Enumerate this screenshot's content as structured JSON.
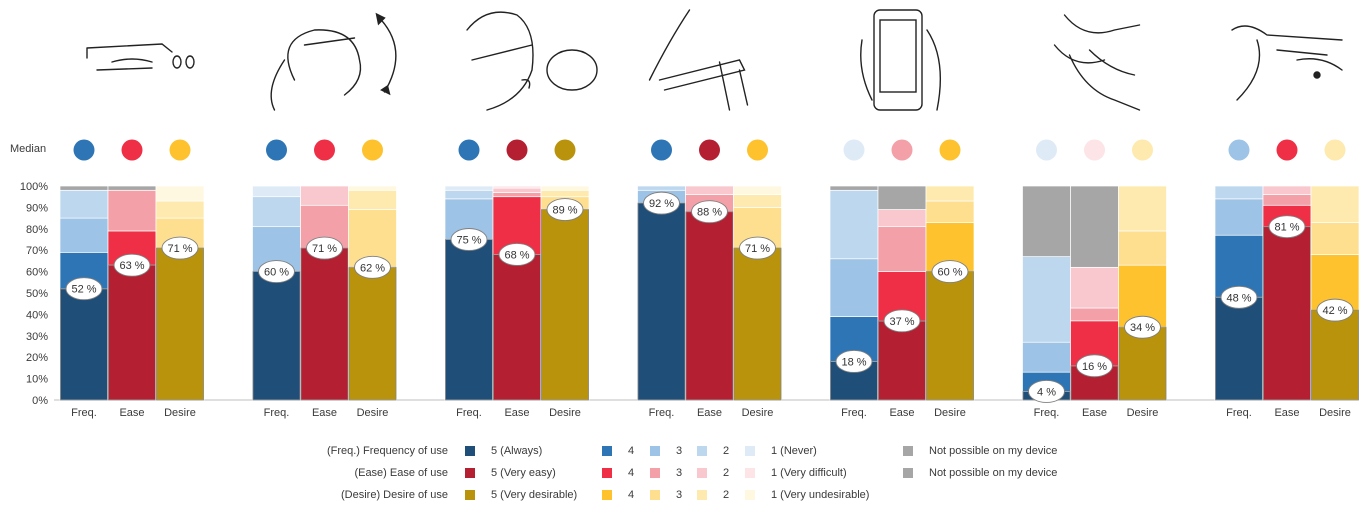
{
  "chart_data": {
    "type": "bar",
    "stacked": true,
    "median_label": "Median",
    "yticks": [
      "0%",
      "10%",
      "20%",
      "30%",
      "40%",
      "50%",
      "60%",
      "70%",
      "80%",
      "90%",
      "100%"
    ],
    "ylim": [
      0,
      100
    ],
    "group_categories": [
      "Freq.",
      "Ease",
      "Desire"
    ],
    "response_levels": [
      "5",
      "4",
      "3",
      "2",
      "1",
      "Not possible on my device"
    ],
    "colors": {
      "freq": [
        "#1f4e79",
        "#2e75b6",
        "#9dc3e6",
        "#bdd7ee",
        "#deebf7",
        "#a6a6a6"
      ],
      "ease": [
        "#b41f32",
        "#ee2f45",
        "#f4a0a9",
        "#f8c8ce",
        "#fce4e7",
        "#a6a6a6"
      ],
      "desire": [
        "#b8930b",
        "#fdc22d",
        "#fedf8f",
        "#feeaae",
        "#fff8e1",
        "#a6a6a6"
      ]
    },
    "groups": [
      {
        "bars": [
          {
            "category": "Freq.",
            "values": [
              52,
              17,
              16,
              13,
              0,
              2
            ],
            "top_label": "52 %",
            "median_level": "4"
          },
          {
            "category": "Ease",
            "values": [
              63,
              16,
              19,
              0,
              0,
              2
            ],
            "top_label": "63 %",
            "median_level": "4"
          },
          {
            "category": "Desire",
            "values": [
              71,
              0,
              14,
              8,
              7,
              0
            ],
            "top_label": "71 %",
            "median_level": "4"
          }
        ]
      },
      {
        "bars": [
          {
            "category": "Freq.",
            "values": [
              60,
              0,
              21,
              14,
              5,
              0
            ],
            "top_label": "60 %",
            "median_level": "4"
          },
          {
            "category": "Ease",
            "values": [
              71,
              0,
              20,
              9,
              0,
              0
            ],
            "top_label": "71 %",
            "median_level": "4"
          },
          {
            "category": "Desire",
            "values": [
              62,
              0,
              27,
              9,
              2,
              0
            ],
            "top_label": "62 %",
            "median_level": "4"
          }
        ]
      },
      {
        "bars": [
          {
            "category": "Freq.",
            "values": [
              75,
              0,
              19,
              4,
              2,
              0
            ],
            "top_label": "75 %",
            "median_level": "4"
          },
          {
            "category": "Ease",
            "values": [
              68,
              27,
              2,
              2,
              1,
              0
            ],
            "top_label": "68 %",
            "median_level": "5"
          },
          {
            "category": "Desire",
            "values": [
              89,
              0,
              6,
              3,
              2,
              0
            ],
            "top_label": "89 %",
            "median_level": "5"
          }
        ]
      },
      {
        "bars": [
          {
            "category": "Freq.",
            "values": [
              92,
              0,
              6,
              2,
              0,
              0
            ],
            "top_label": "92 %",
            "median_level": "4"
          },
          {
            "category": "Ease",
            "values": [
              88,
              0,
              8,
              4,
              0,
              0
            ],
            "top_label": "88 %",
            "median_level": "5"
          },
          {
            "category": "Desire",
            "values": [
              71,
              0,
              19,
              6,
              4,
              0
            ],
            "top_label": "71 %",
            "median_level": "4"
          }
        ]
      },
      {
        "bars": [
          {
            "category": "Freq.",
            "values": [
              18,
              21,
              27,
              32,
              0,
              2
            ],
            "top_label": "18 %",
            "median_level": "1"
          },
          {
            "category": "Ease",
            "values": [
              37,
              23,
              21,
              8,
              0,
              11
            ],
            "top_label": "37 %",
            "median_level": "3"
          },
          {
            "category": "Desire",
            "values": [
              60,
              23,
              10,
              7,
              0,
              0
            ],
            "top_label": "60 %",
            "median_level": "4"
          }
        ]
      },
      {
        "bars": [
          {
            "category": "Freq.",
            "values": [
              4,
              9,
              14,
              40,
              0,
              33
            ],
            "top_label": "4 %",
            "median_level": "1"
          },
          {
            "category": "Ease",
            "values": [
              16,
              21,
              6,
              19,
              0,
              38
            ],
            "top_label": "16 %",
            "median_level": "1"
          },
          {
            "category": "Desire",
            "values": [
              34,
              29,
              16,
              21,
              0,
              0
            ],
            "top_label": "34 %",
            "median_level": "2"
          }
        ]
      },
      {
        "bars": [
          {
            "category": "Freq.",
            "values": [
              48,
              29,
              17,
              6,
              0,
              0
            ],
            "top_label": "48 %",
            "median_level": "3"
          },
          {
            "category": "Ease",
            "values": [
              81,
              10,
              5,
              4,
              0,
              0
            ],
            "top_label": "81 %",
            "median_level": "4"
          },
          {
            "category": "Desire",
            "values": [
              42,
              26,
              15,
              17,
              0,
              0
            ],
            "top_label": "42 %",
            "median_level": "2"
          }
        ]
      }
    ]
  },
  "legend": {
    "rows": [
      {
        "label": "(Freq.) Frequency of use",
        "items": [
          "5 (Always)",
          "4",
          "3",
          "2",
          "1 (Never)",
          "Not possible on my device"
        ],
        "colors": [
          "#1f4e79",
          "#2e75b6",
          "#9dc3e6",
          "#bdd7ee",
          "#deebf7",
          "#a6a6a6"
        ]
      },
      {
        "label": "(Ease) Ease of use",
        "items": [
          "5 (Very easy)",
          "4",
          "3",
          "2",
          "1 (Very difficult)",
          "Not possible on my device"
        ],
        "colors": [
          "#b41f32",
          "#ee2f45",
          "#f4a0a9",
          "#f8c8ce",
          "#fce4e7",
          "#a6a6a6"
        ]
      },
      {
        "label": "(Desire) Desire of use",
        "items": [
          "5 (Very desirable)",
          "4",
          "3",
          "2",
          "1 (Very undesirable)"
        ],
        "colors": [
          "#b8930b",
          "#fdc22d",
          "#fedf8f",
          "#feeaae",
          "#fff8e1"
        ]
      }
    ]
  },
  "illustrations": [
    "glasses-touchpad-illustration",
    "head-gesture-illustration",
    "voice-command-illustration",
    "hand-on-temple-illustration",
    "smartphone-illustration",
    "hand-gesture-illustration",
    "glasses-side-view-illustration"
  ]
}
